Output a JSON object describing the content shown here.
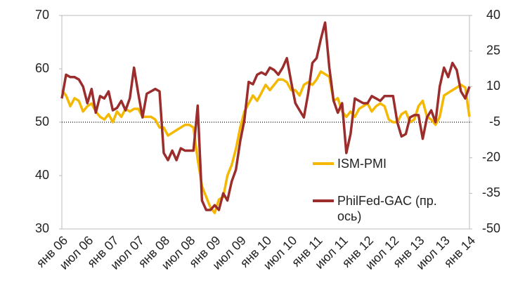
{
  "chart_data": {
    "type": "line",
    "categories": [
      "янв 06",
      null,
      null,
      null,
      null,
      null,
      "июл 06",
      null,
      null,
      null,
      null,
      null,
      "янв 07",
      null,
      null,
      null,
      null,
      null,
      "июл 07",
      null,
      null,
      null,
      null,
      null,
      "янв 08",
      null,
      null,
      null,
      null,
      null,
      "июл 08",
      null,
      null,
      null,
      null,
      null,
      "янв 09",
      null,
      null,
      null,
      null,
      null,
      "июл 09",
      null,
      null,
      null,
      null,
      null,
      "янв 10",
      null,
      null,
      null,
      null,
      null,
      "июл 10",
      null,
      null,
      null,
      null,
      null,
      "янв 11",
      null,
      null,
      null,
      null,
      null,
      "июл 11",
      null,
      null,
      null,
      null,
      null,
      "янв 12",
      null,
      null,
      null,
      null,
      null,
      "июл 12",
      null,
      null,
      null,
      null,
      null,
      "янв 13",
      null,
      null,
      null,
      null,
      null,
      "июл 13",
      null,
      null,
      null,
      null,
      null,
      "янв 14"
    ],
    "series": [
      {
        "name": "ISM-PMI",
        "color": "#f5b800",
        "axis": "y",
        "values": [
          56,
          55,
          53,
          54.5,
          54,
          52,
          53,
          53.5,
          52,
          51,
          50.5,
          51.5,
          50,
          52,
          51,
          52.5,
          52,
          52.5,
          52.5,
          51,
          51,
          51,
          50.5,
          49,
          49,
          47.5,
          48,
          48.5,
          49,
          49.5,
          49.5,
          49,
          43,
          38,
          36,
          34,
          33,
          35.5,
          36,
          40,
          42,
          45,
          49,
          52,
          53.5,
          55,
          54,
          55.5,
          57,
          56,
          57,
          58,
          58,
          57.5,
          56,
          56,
          55,
          57,
          57.5,
          57,
          58,
          59.5,
          59,
          58.5,
          54,
          54.5,
          52,
          51,
          52,
          51,
          52.5,
          53,
          53.5,
          52,
          53,
          53.5,
          53,
          50.5,
          50,
          50,
          51.5,
          52,
          50,
          50.5,
          53,
          54,
          51,
          50.5,
          49.5,
          51,
          55,
          55.5,
          56,
          56.5,
          57,
          56.5,
          51
        ]
      },
      {
        "name": "PhilFed-GAC (пр. ось)",
        "color": "#9b2d2d",
        "axis": "y2",
        "values": [
          5,
          15,
          14,
          14,
          13,
          10,
          3,
          9,
          -1,
          6,
          5,
          8,
          0,
          1,
          4,
          0,
          5,
          18,
          7,
          -3,
          7,
          8,
          9,
          8,
          -18,
          -21,
          -17,
          -21,
          -16,
          -17,
          -17,
          -17,
          2,
          -38,
          -42,
          -42,
          -40,
          -42,
          -35,
          -38,
          -30,
          -25,
          -13,
          -4,
          12,
          11,
          15,
          16,
          15,
          18,
          17,
          15,
          18,
          22,
          12,
          3,
          0,
          -3,
          7,
          20,
          22,
          30,
          37,
          18,
          4,
          -1,
          3,
          -18,
          -10,
          5,
          4,
          3,
          3,
          6,
          5,
          4,
          6,
          6,
          6,
          -5,
          -11,
          -10,
          -3,
          -2,
          -2,
          -12,
          -3,
          0,
          -5,
          10,
          18,
          14,
          20,
          17,
          8,
          5,
          10
        ]
      }
    ],
    "ylim": [
      30,
      70
    ],
    "yticks": [
      30,
      40,
      50,
      60,
      70
    ],
    "y2lim": [
      -50,
      40
    ],
    "y2ticks": [
      -50,
      -35,
      -20,
      -5,
      10,
      25,
      40
    ],
    "reference_line": 50
  }
}
